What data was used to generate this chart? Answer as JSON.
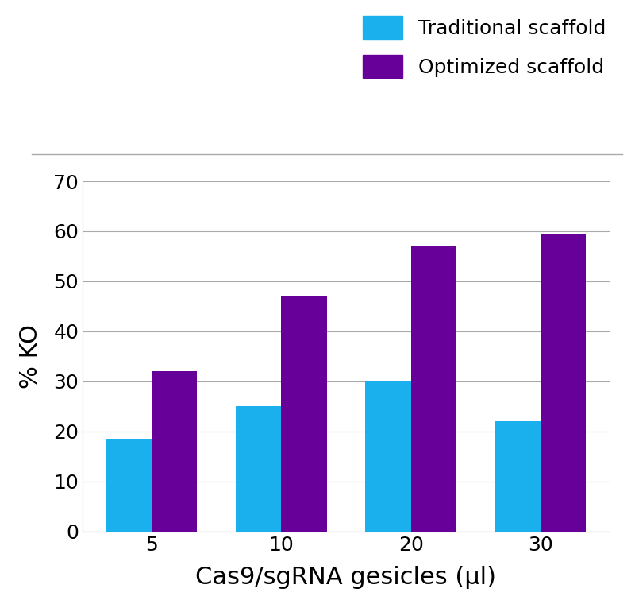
{
  "categories": [
    "5",
    "10",
    "20",
    "30"
  ],
  "traditional_values": [
    18.5,
    25,
    30,
    22
  ],
  "optimized_values": [
    32,
    47,
    57,
    59.5
  ],
  "traditional_color": "#1AAFED",
  "optimized_color": "#660099",
  "xlabel": "Cas9/sgRNA gesicles (μl)",
  "ylabel": "% KO",
  "ylim": [
    0,
    70
  ],
  "yticks": [
    0,
    10,
    20,
    30,
    40,
    50,
    60,
    70
  ],
  "legend_labels": [
    "Traditional scaffold",
    "Optimized scaffold"
  ],
  "bar_width": 0.35,
  "background_color": "#ffffff",
  "grid_color": "#aaaaaa",
  "xlabel_fontsize": 22,
  "ylabel_fontsize": 22,
  "tick_fontsize": 18,
  "legend_fontsize": 18
}
